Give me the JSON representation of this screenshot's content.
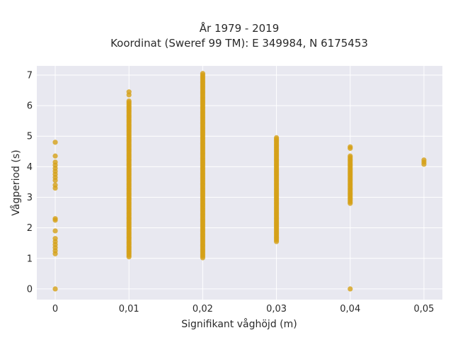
{
  "chart_data": {
    "type": "scatter",
    "title_lines": [
      "År 1979 - 2019",
      "Koordinat (Sweref 99 TM): E 349984, N 6175453"
    ],
    "xlabel": "Signifikant våghöjd (m)",
    "ylabel": "Vågperiod (s)",
    "x_ticks": [
      0,
      0.01,
      0.02,
      0.03,
      0.04,
      0.05
    ],
    "x_tick_labels": [
      "0",
      "0,01",
      "0,02",
      "0,03",
      "0,04",
      "0,05"
    ],
    "y_ticks": [
      0,
      1,
      2,
      3,
      4,
      5,
      6,
      7
    ],
    "y_tick_labels": [
      "0",
      "1",
      "2",
      "3",
      "4",
      "5",
      "6",
      "7"
    ],
    "xlim": [
      -0.0025,
      0.0525
    ],
    "ylim": [
      -0.35,
      7.3
    ],
    "grid": true,
    "marker_color": "#d4a017",
    "plot_background": "#e8e8f0",
    "series": [
      {
        "points": [
          {
            "x": 0,
            "y": 0
          },
          {
            "x": 0,
            "y": 1.15
          },
          {
            "x": 0,
            "y": 1.25
          },
          {
            "x": 0,
            "y": 1.35
          },
          {
            "x": 0,
            "y": 1.45
          },
          {
            "x": 0,
            "y": 1.55
          },
          {
            "x": 0,
            "y": 1.65
          },
          {
            "x": 0,
            "y": 1.9
          },
          {
            "x": 0,
            "y": 2.25
          },
          {
            "x": 0,
            "y": 2.3
          },
          {
            "x": 0,
            "y": 3.3
          },
          {
            "x": 0,
            "y": 3.4
          },
          {
            "x": 0,
            "y": 3.55
          },
          {
            "x": 0,
            "y": 3.65
          },
          {
            "x": 0,
            "y": 3.75
          },
          {
            "x": 0,
            "y": 3.85
          },
          {
            "x": 0,
            "y": 3.95
          },
          {
            "x": 0,
            "y": 4.05
          },
          {
            "x": 0,
            "y": 4.15
          },
          {
            "x": 0,
            "y": 4.35
          },
          {
            "x": 0,
            "y": 4.8
          },
          {
            "x": 0.04,
            "y": 0
          },
          {
            "x": 0.04,
            "y": 4.6
          },
          {
            "x": 0.04,
            "y": 4.65
          },
          {
            "x": 0.05,
            "y": 4.08
          },
          {
            "x": 0.05,
            "y": 4.15
          },
          {
            "x": 0.05,
            "y": 4.22
          }
        ],
        "ranges": [
          {
            "x": 0.01,
            "y_min": 1.05,
            "y_max": 6.15
          },
          {
            "x": 0.02,
            "y_min": 1.02,
            "y_max": 7.05
          },
          {
            "x": 0.03,
            "y_min": 1.55,
            "y_max": 4.95
          },
          {
            "x": 0.04,
            "y_min": 2.8,
            "y_max": 4.35
          }
        ],
        "extra_points": [
          {
            "x": 0.01,
            "y": 6.35
          },
          {
            "x": 0.01,
            "y": 6.45
          }
        ]
      }
    ]
  }
}
